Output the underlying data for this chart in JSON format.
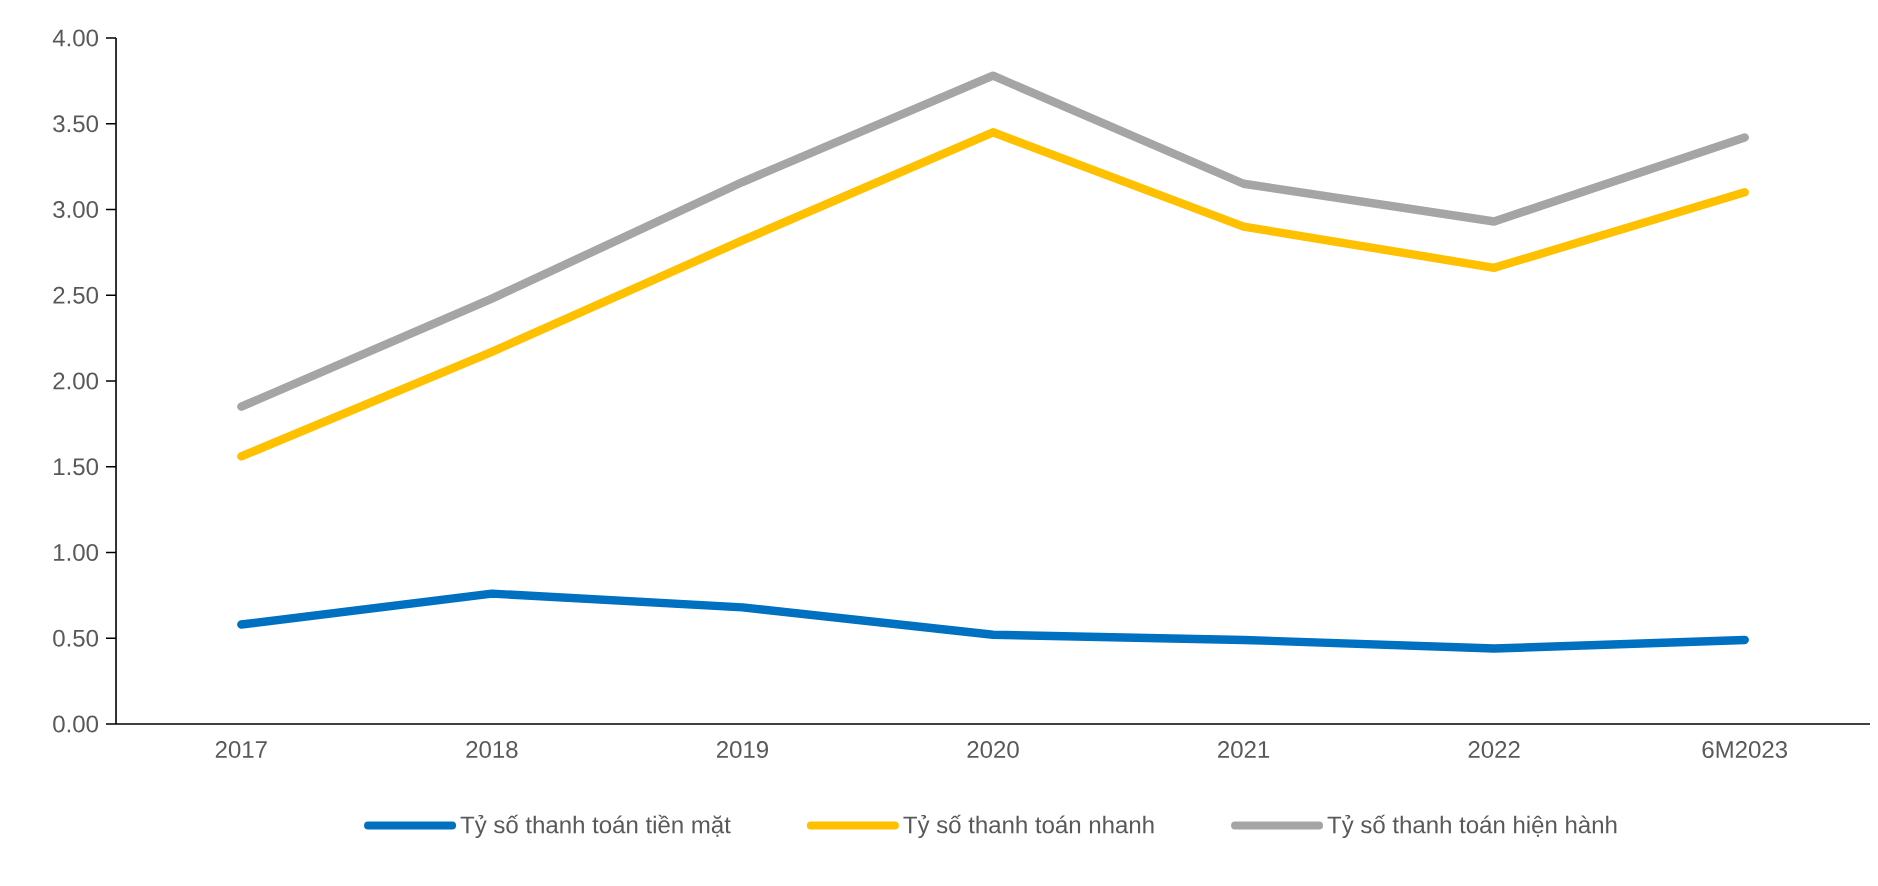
{
  "chart_data": {
    "type": "line",
    "categories": [
      "2017",
      "2018",
      "2019",
      "2020",
      "2021",
      "2022",
      "6M2023"
    ],
    "series": [
      {
        "name": "Tỷ số thanh toán tiền mặt",
        "color": "#0070c0",
        "values": [
          0.58,
          0.76,
          0.68,
          0.52,
          0.49,
          0.44,
          0.49
        ]
      },
      {
        "name": "Tỷ số thanh toán nhanh",
        "color": "#ffc000",
        "values": [
          1.56,
          2.17,
          2.82,
          3.45,
          2.9,
          2.66,
          3.1
        ]
      },
      {
        "name": "Tỷ số thanh toán hiện hành",
        "color": "#a5a5a5",
        "values": [
          1.85,
          2.48,
          3.16,
          3.78,
          3.15,
          2.93,
          3.42
        ]
      }
    ],
    "ylim": [
      0,
      4
    ],
    "yticks": [
      {
        "value": 0,
        "label": "0.00"
      },
      {
        "value": 0.5,
        "label": "0.50"
      },
      {
        "value": 1,
        "label": "1.00"
      },
      {
        "value": 1.5,
        "label": "1.50"
      },
      {
        "value": 2,
        "label": "2.00"
      },
      {
        "value": 2.5,
        "label": "2.50"
      },
      {
        "value": 3,
        "label": "3.00"
      },
      {
        "value": 3.5,
        "label": "3.50"
      },
      {
        "value": 4,
        "label": "4.00"
      }
    ],
    "legend": "bottom",
    "grid": false,
    "marker": "none",
    "line_style": "solid"
  }
}
